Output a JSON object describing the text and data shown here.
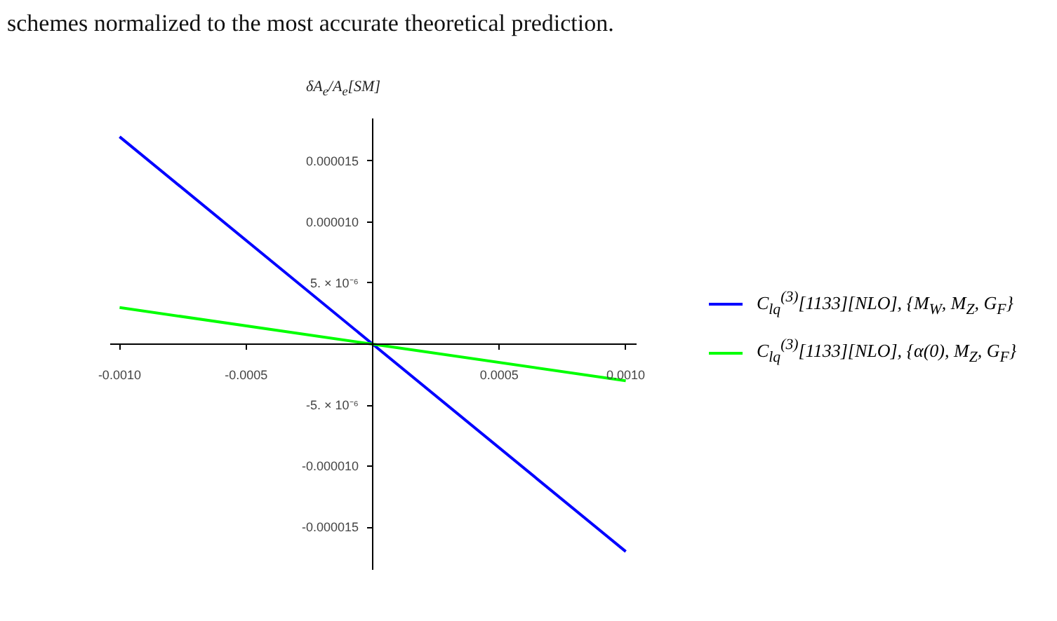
{
  "chart_data": {
    "type": "line",
    "annotations": [
      "schemes normalized to the most accurate theoretical prediction."
    ],
    "ylabel": "δA$_{e}$/A$_{e}$[SM]",
    "x": [
      -0.001,
      0.0,
      0.001
    ],
    "series": [
      {
        "name": "C$_{lq}$$^{(3)}$[1133][NLO], {M$_{W}$, M$_{Z}$, G$_{F}$}",
        "color": "#0000ff",
        "values": [
          1.7e-05,
          0.0,
          -1.7e-05
        ]
      },
      {
        "name": "C$_{lq}$$^{(3)}$[1133][NLO], {α(0), M$_{Z}$, G$_{F}$}",
        "color": "#00ff00",
        "values": [
          3e-06,
          0.0,
          -3e-06
        ]
      }
    ],
    "xlim": [
      -0.00104,
      0.00104
    ],
    "ylim": [
      -1.85e-05,
      1.85e-05
    ],
    "xticks": [
      {
        "value": -0.001,
        "label": "-0.0010"
      },
      {
        "value": -0.0005,
        "label": "-0.0005"
      },
      {
        "value": 0.0005,
        "label": "0.0005"
      },
      {
        "value": 0.001,
        "label": "0.0010"
      }
    ],
    "yticks": [
      {
        "value": -1.5e-05,
        "label": "-0.000015"
      },
      {
        "value": -1e-05,
        "label": "-0.000010"
      },
      {
        "value": -5e-06,
        "label": "-5. × 10⁻⁶"
      },
      {
        "value": 5e-06,
        "label": "5. × 10⁻⁶"
      },
      {
        "value": 1e-05,
        "label": "0.000010"
      },
      {
        "value": 1.5e-05,
        "label": "0.000015"
      }
    ],
    "grid": false,
    "legend": "right"
  }
}
